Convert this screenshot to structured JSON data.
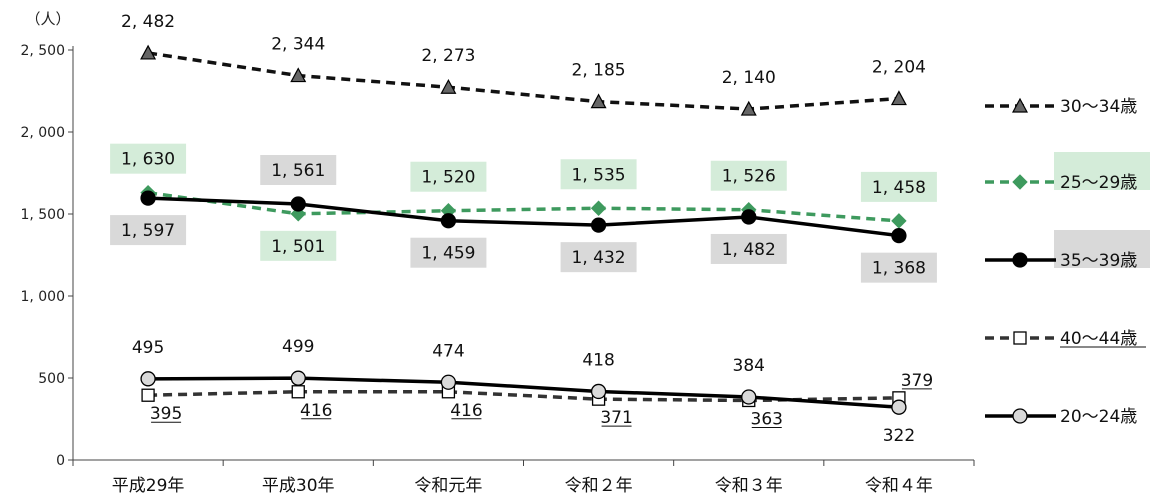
{
  "chart_data": {
    "type": "line",
    "unit_label": "（人）",
    "categories": [
      "平成29年",
      "平成30年",
      "令和元年",
      "令和２年",
      "令和３年",
      "令和４年"
    ],
    "ylim": [
      0,
      2500
    ],
    "yticks": [
      0,
      500,
      1000,
      1500,
      2000,
      2500
    ],
    "ytick_labels": [
      "0",
      "500",
      "1, 000",
      "1, 500",
      "2, 000",
      "2, 500"
    ],
    "grid": false,
    "legend_position": "right",
    "series": [
      {
        "name": "30～34歳",
        "values": [
          2482,
          2344,
          2273,
          2185,
          2140,
          2204
        ],
        "labels": [
          "2, 482",
          "2, 344",
          "2, 273",
          "2, 185",
          "2, 140",
          "2, 204"
        ],
        "color": "#111111",
        "dash": true,
        "marker": "triangle",
        "marker_fill": "#666666",
        "label_pos": "above",
        "label_bg": null,
        "underline": false
      },
      {
        "name": "25～29歳",
        "values": [
          1630,
          1501,
          1520,
          1535,
          1526,
          1458
        ],
        "labels": [
          "1, 630",
          "1, 501",
          "1, 520",
          "1, 535",
          "1, 526",
          "1, 458"
        ],
        "color": "#3e9a5e",
        "dash": true,
        "marker": "diamond",
        "marker_fill": "#3e9a5e",
        "label_pos": [
          "above",
          "below",
          "above",
          "above",
          "above",
          "above"
        ],
        "label_bg": "#d4ecd9",
        "underline": false
      },
      {
        "name": "35～39歳",
        "values": [
          1597,
          1561,
          1459,
          1432,
          1482,
          1368
        ],
        "labels": [
          "1, 597",
          "1, 561",
          "1, 459",
          "1, 432",
          "1, 482",
          "1, 368"
        ],
        "color": "#000000",
        "dash": false,
        "marker": "circle",
        "marker_fill": "#000000",
        "label_pos": [
          "below",
          "above",
          "below",
          "below",
          "below",
          "below"
        ],
        "label_bg": "#d9d9d9",
        "underline": false
      },
      {
        "name": "40～44歳",
        "values": [
          395,
          416,
          416,
          371,
          363,
          379
        ],
        "labels": [
          "395",
          "416",
          "416",
          "371",
          "363",
          "379"
        ],
        "color": "#333333",
        "dash": true,
        "marker": "square",
        "marker_fill": "#ffffff",
        "label_pos": [
          "below",
          "below",
          "below",
          "below",
          "below",
          "above"
        ],
        "label_bg": null,
        "underline": true
      },
      {
        "name": "20～24歳",
        "values": [
          495,
          499,
          474,
          418,
          384,
          322
        ],
        "labels": [
          "495",
          "499",
          "474",
          "418",
          "384",
          "322"
        ],
        "color": "#000000",
        "dash": false,
        "marker": "circle",
        "marker_fill": "#d9d9d9",
        "label_pos": [
          "above",
          "above",
          "above",
          "above",
          "above",
          "below"
        ],
        "label_bg": null,
        "underline": false
      }
    ],
    "legend": {
      "order": [
        "30～34歳",
        "25～29歳",
        "35～39歳",
        "40～44歳",
        "20～24歳"
      ],
      "highlight": {
        "25～29歳": "#d4ecd9",
        "35～39歳": "#d9d9d9"
      },
      "underline": {
        "40～44歳": true
      }
    }
  }
}
